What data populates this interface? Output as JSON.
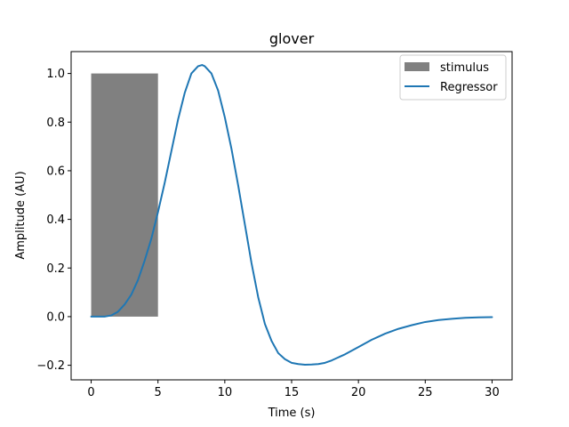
{
  "chart_data": {
    "type": "line",
    "title": "glover",
    "xlabel": "Time (s)",
    "ylabel": "Amplitude (AU)",
    "xlim": [
      -1.5,
      31.5
    ],
    "ylim": [
      -0.26,
      1.09
    ],
    "xticks": [
      0,
      5,
      10,
      15,
      20,
      25,
      30
    ],
    "xtick_labels": [
      "0",
      "5",
      "10",
      "15",
      "20",
      "25",
      "30"
    ],
    "yticks": [
      -0.2,
      0.0,
      0.2,
      0.4,
      0.6,
      0.8,
      1.0
    ],
    "ytick_labels": [
      "−0.2",
      "0.0",
      "0.2",
      "0.4",
      "0.6",
      "0.8",
      "1.0"
    ],
    "grid": false,
    "legend_position": "top-right",
    "stimulus": {
      "name": "stimulus",
      "color": "#808080",
      "onset": 0,
      "offset": 5,
      "amplitude": 1.0
    },
    "series": [
      {
        "name": "Regressor",
        "color": "#1f77b4",
        "x": [
          0,
          1,
          1.5,
          2,
          2.5,
          3,
          3.5,
          4,
          4.5,
          5,
          5.5,
          6,
          6.5,
          7,
          7.5,
          8,
          8.3,
          8.5,
          9,
          9.5,
          10,
          10.5,
          11,
          11.5,
          12,
          12.5,
          13,
          13.5,
          14,
          14.5,
          15,
          15.5,
          16,
          16.5,
          17,
          17.5,
          18,
          19,
          20,
          21,
          22,
          23,
          24,
          25,
          26,
          27,
          28,
          29,
          30
        ],
        "y": [
          0.0,
          0.0,
          0.005,
          0.02,
          0.05,
          0.09,
          0.15,
          0.23,
          0.32,
          0.43,
          0.55,
          0.68,
          0.81,
          0.92,
          1.0,
          1.03,
          1.035,
          1.03,
          1.0,
          0.93,
          0.82,
          0.69,
          0.54,
          0.38,
          0.22,
          0.08,
          -0.03,
          -0.1,
          -0.15,
          -0.175,
          -0.19,
          -0.195,
          -0.198,
          -0.197,
          -0.195,
          -0.19,
          -0.18,
          -0.155,
          -0.125,
          -0.095,
          -0.07,
          -0.05,
          -0.035,
          -0.022,
          -0.014,
          -0.009,
          -0.005,
          -0.003,
          -0.002
        ]
      }
    ]
  }
}
